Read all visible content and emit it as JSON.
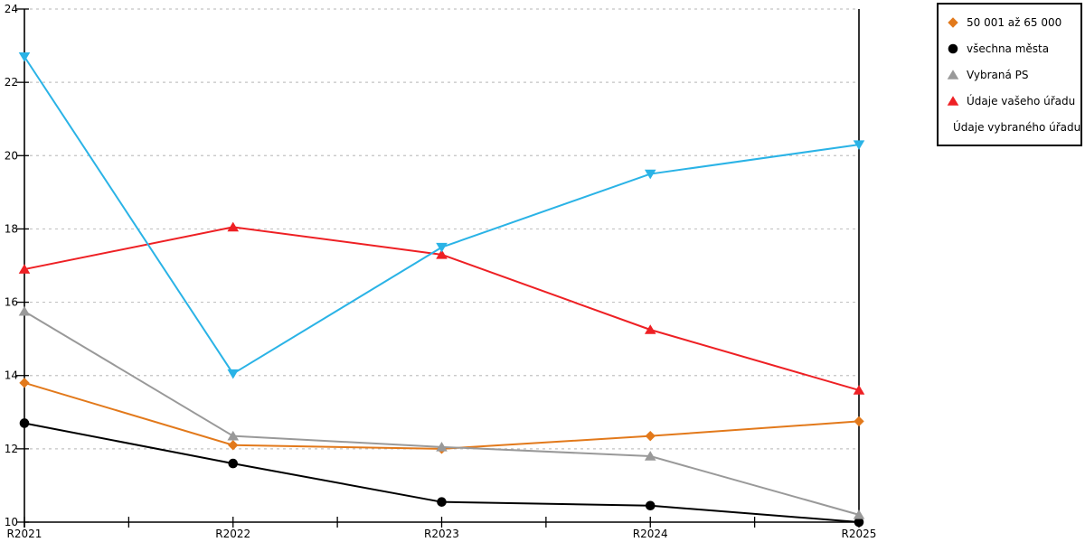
{
  "chart_data": {
    "type": "line",
    "title": "",
    "xlabel": "",
    "ylabel": "",
    "x": [
      "R2021",
      "R2022",
      "R2023",
      "R2024",
      "R2025"
    ],
    "ylim": [
      10,
      24
    ],
    "yticks": [
      10,
      12,
      14,
      16,
      18,
      20,
      22,
      24
    ],
    "grid": "horizontal-dashed",
    "legend_position": "top-right-outside",
    "colors": {
      "grid": "#c3c3c3",
      "axis": "#000000",
      "background": "#ffffff"
    },
    "series": [
      {
        "name": "50 001 až 65 000",
        "marker": "diamond",
        "color": "#e2791b",
        "values": [
          13.8,
          12.1,
          12.0,
          12.35,
          12.75
        ]
      },
      {
        "name": "všechna města",
        "marker": "circle",
        "color": "#000000",
        "values": [
          12.7,
          11.6,
          10.55,
          10.45,
          10.0
        ]
      },
      {
        "name": "Vybraná PS",
        "marker": "triangle-up",
        "color": "#999999",
        "values": [
          15.75,
          12.35,
          12.05,
          11.8,
          10.2
        ]
      },
      {
        "name": "Údaje vašeho úřadu",
        "marker": "triangle-up",
        "color": "#ee2024",
        "values": [
          16.9,
          18.05,
          17.3,
          15.25,
          13.6
        ]
      },
      {
        "name": "Údaje vybraného úřadu",
        "marker": "triangle-down",
        "color": "#2ab3e6",
        "values": [
          22.7,
          14.05,
          17.5,
          19.5,
          20.3
        ]
      }
    ]
  }
}
